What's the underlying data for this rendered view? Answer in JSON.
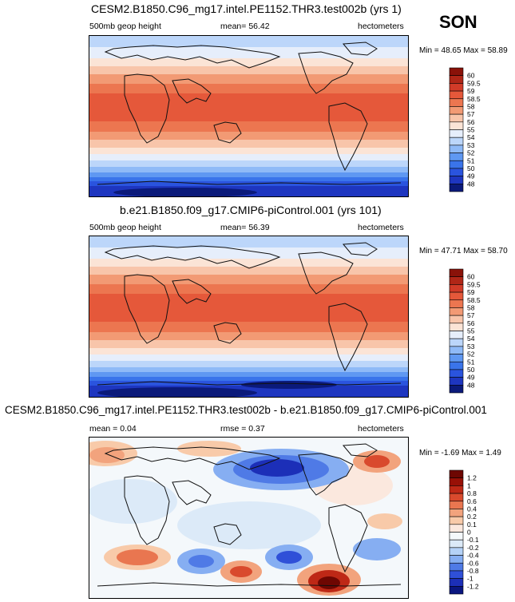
{
  "season": "SON",
  "units": "hectometers",
  "variable": "500mb geop height",
  "chart_data": [
    {
      "type": "heatmap",
      "title": "CESM2.B1850.C96_mg17.intel.PE1152.THR3.test002b (yrs 1)",
      "variable_label": "500mb geop height",
      "mean_text": "mean=  56.42",
      "units": "hectometers",
      "minmax_text": "Min = 48.65 Max = 58.89",
      "min": 48.65,
      "max": 58.89,
      "colorbar_levels": [
        "48",
        "49",
        "50",
        "51",
        "52",
        "53",
        "54",
        "55",
        "56",
        "57",
        "58",
        "58.5",
        "59",
        "59.5",
        "60"
      ],
      "colorbar_colors": [
        "#0b1a7a",
        "#1e36c0",
        "#2a54de",
        "#3a74ea",
        "#5f98f2",
        "#8fbaf7",
        "#bcd6fa",
        "#e6eefb",
        "#fbe4d6",
        "#f8c5aa",
        "#f29a74",
        "#ec7650",
        "#e5583a",
        "#d13b28",
        "#b02617",
        "#8a1209"
      ]
    },
    {
      "type": "heatmap",
      "title": "b.e21.B1850.f09_g17.CMIP6-piControl.001 (yrs 101)",
      "variable_label": "500mb geop height",
      "mean_text": "mean=  56.39",
      "units": "hectometers",
      "minmax_text": "Min =  47.71 Max =  58.70",
      "min": 47.71,
      "max": 58.7,
      "colorbar_levels": [
        "48",
        "49",
        "50",
        "51",
        "52",
        "53",
        "54",
        "55",
        "56",
        "57",
        "58",
        "58.5",
        "59",
        "59.5",
        "60"
      ],
      "colorbar_colors": [
        "#0b1a7a",
        "#1e36c0",
        "#2a54de",
        "#3a74ea",
        "#5f98f2",
        "#8fbaf7",
        "#bcd6fa",
        "#e6eefb",
        "#fbe4d6",
        "#f8c5aa",
        "#f29a74",
        "#ec7650",
        "#e5583a",
        "#d13b28",
        "#b02617",
        "#8a1209"
      ]
    },
    {
      "type": "heatmap",
      "title": "CESM2.B1850.C96_mg17.intel.PE1152.THR3.test002b - b.e21.B1850.f09_g17.CMIP6-piControl.001",
      "mean_text": "mean =   0.04",
      "rmse_text": "rmse =   0.37",
      "units": "hectometers",
      "minmax_text": "Min = -1.69 Max =  1.49",
      "min": -1.69,
      "max": 1.49,
      "colorbar_levels": [
        "-1.2",
        "-1",
        "-0.8",
        "-0.6",
        "-0.4",
        "-0.2",
        "-0.1",
        "0",
        "0.1",
        "0.2",
        "0.4",
        "0.6",
        "0.8",
        "1",
        "1.2"
      ],
      "colorbar_colors": [
        "#0a1680",
        "#1c2fb8",
        "#2f50d8",
        "#4f7ae6",
        "#86aef2",
        "#b5d2f7",
        "#dceaf8",
        "#f4f8fb",
        "#fbe8de",
        "#f8caa9",
        "#f2a37d",
        "#e97650",
        "#d94a2d",
        "#be2816",
        "#981006",
        "#6e0702"
      ]
    }
  ]
}
